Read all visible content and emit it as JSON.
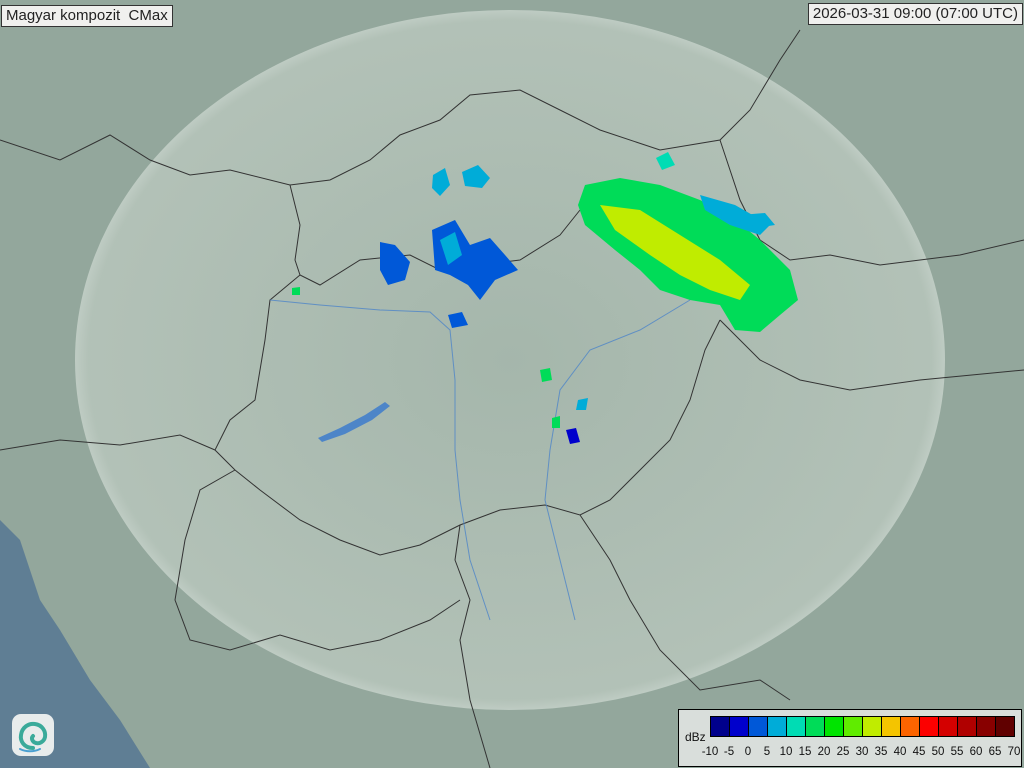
{
  "header": {
    "title": "Magyar kompozit  CMax",
    "timestamp": "2026-03-31 09:00 (07:00 UTC)"
  },
  "legend": {
    "unit": "dBz",
    "ticks": [
      "-10",
      "-5",
      "0",
      "5",
      "10",
      "15",
      "20",
      "25",
      "30",
      "35",
      "40",
      "45",
      "50",
      "55",
      "60",
      "65",
      "70"
    ],
    "colors": [
      "#00008c",
      "#0000cc",
      "#0058d8",
      "#00acd8",
      "#00dcb4",
      "#00dc58",
      "#00e400",
      "#60ec00",
      "#c0ec00",
      "#f4c400",
      "#fc6400",
      "#fc0000",
      "#d40000",
      "#b00000",
      "#880000",
      "#600000"
    ]
  },
  "map": {
    "land_color": "#8fa59a",
    "coverage_color": "#c8d4cc",
    "sea_color": "#5f7e94",
    "border_color": "#333333",
    "river_color": "#4d85c8"
  },
  "logo": {
    "icon": "swirl-logo-icon"
  }
}
